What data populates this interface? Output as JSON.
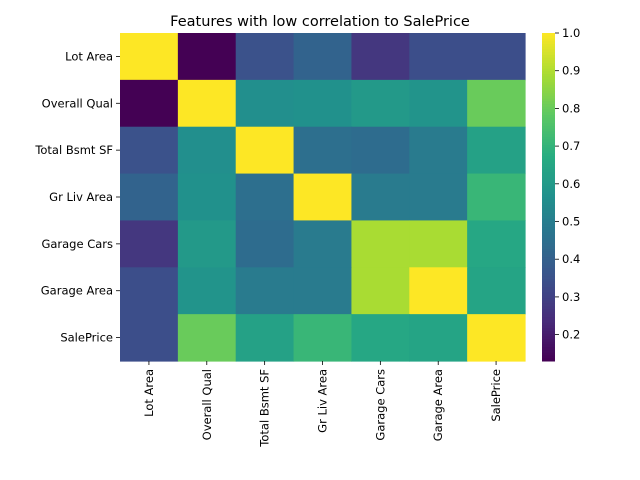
{
  "chart_data": {
    "type": "heatmap",
    "title": "Features with low correlation to SalePrice",
    "xlabel": "",
    "ylabel": "",
    "x_categories": [
      "Lot Area",
      "Overall Qual",
      "Total Bsmt SF",
      "Gr Liv Area",
      "Garage Cars",
      "Garage Area",
      "SalePrice"
    ],
    "y_categories": [
      "Lot Area",
      "Overall Qual",
      "Total Bsmt SF",
      "Gr Liv Area",
      "Garage Cars",
      "Garage Area",
      "SalePrice"
    ],
    "values": [
      [
        1.0,
        0.13,
        0.35,
        0.41,
        0.27,
        0.34,
        0.34
      ],
      [
        0.13,
        1.0,
        0.56,
        0.57,
        0.6,
        0.58,
        0.8
      ],
      [
        0.35,
        0.56,
        1.0,
        0.45,
        0.44,
        0.49,
        0.63
      ],
      [
        0.41,
        0.57,
        0.45,
        1.0,
        0.49,
        0.49,
        0.71
      ],
      [
        0.27,
        0.6,
        0.44,
        0.49,
        0.89,
        0.89,
        0.65
      ],
      [
        0.34,
        0.58,
        0.49,
        0.49,
        0.89,
        1.0,
        0.64
      ],
      [
        0.34,
        0.8,
        0.63,
        0.71,
        0.65,
        0.64,
        1.0
      ]
    ],
    "colormap": "viridis",
    "vmin": 0.13,
    "vmax": 1.0,
    "colorbar": {
      "ticks": [
        0.2,
        0.3,
        0.4,
        0.5,
        0.6,
        0.7,
        0.8,
        0.9,
        1.0
      ],
      "tick_labels": [
        "0.2",
        "0.3",
        "0.4",
        "0.5",
        "0.6",
        "0.7",
        "0.8",
        "0.9",
        "1.0"
      ]
    },
    "grid": false,
    "legend": "colorbar-right"
  }
}
